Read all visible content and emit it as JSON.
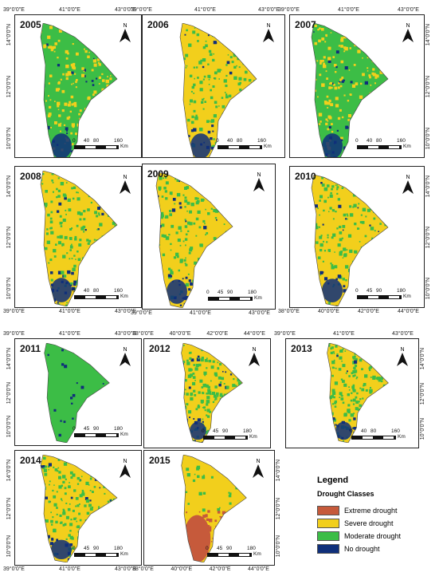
{
  "colors": {
    "extreme": "#c65a3b",
    "severe": "#f2cf1c",
    "moderate": "#3cbd46",
    "none": "#0f2f7a"
  },
  "panels": [
    {
      "year": "2005",
      "scale": [
        "0",
        "40",
        "80",
        "160"
      ],
      "unit": "Km",
      "lon": [
        "39°0'0\"E",
        "41°0'0\"E",
        "43°0'0\"E"
      ],
      "lat": [
        "14°0'0\"N",
        "12°0'0\"N",
        "10°0'0\"N"
      ],
      "dominant": "moderate"
    },
    {
      "year": "2006",
      "scale": [
        "0",
        "40",
        "80",
        "160"
      ],
      "unit": "Km",
      "lon": [
        "39°0'0\"E",
        "41°0'0\"E",
        "43°0'0\"E"
      ],
      "lat": [],
      "dominant": "severe"
    },
    {
      "year": "2007",
      "scale": [
        "0",
        "40",
        "80",
        "160"
      ],
      "unit": "Km",
      "lon": [
        "39°0'0\"E",
        "41°0'0\"E",
        "43°0'0\"E"
      ],
      "lat": [
        "14°0'0\"N",
        "12°0'0\"N",
        "10°0'0\"N"
      ],
      "dominant": "moderate"
    },
    {
      "year": "2008",
      "scale": [
        "0",
        "40",
        "80",
        "160"
      ],
      "unit": "Km",
      "lon": [
        "39°0'0\"E",
        "41°0'0\"E",
        "43°0'0\"E"
      ],
      "lat": [
        "14°0'0\"N",
        "12°0'0\"N",
        "10°0'0\"N"
      ],
      "dominant": "severe"
    },
    {
      "year": "2009",
      "scale": [
        "0",
        "45",
        "90",
        "180"
      ],
      "unit": "Km",
      "lon": [
        "39°0'0\"E",
        "41°0'0\"E",
        "43°0'0\"E"
      ],
      "lat": [],
      "dominant": "severe"
    },
    {
      "year": "2010",
      "scale": [
        "0",
        "45",
        "90",
        "180"
      ],
      "unit": "Km",
      "lon": [
        "38°0'0\"E",
        "40°0'0\"E",
        "42°0'0\"E",
        "44°0'0\"E"
      ],
      "lat": [
        "14°0'0\"N",
        "12°0'0\"N",
        "10°0'0\"N"
      ],
      "dominant": "severe"
    },
    {
      "year": "2011",
      "scale": [
        "0",
        "45",
        "90",
        "180"
      ],
      "unit": "Km",
      "lon": [
        "39°0'0\"E",
        "41°0'0\"E",
        "43°0'0\"E"
      ],
      "lat": [
        "14°0'0\"N",
        "12°0'0\"N",
        "10°0'0\"N"
      ],
      "dominant": "moderate"
    },
    {
      "year": "2012",
      "scale": [
        "0",
        "45",
        "90",
        "180"
      ],
      "unit": "Km",
      "lon": [
        "38°0'0\"E",
        "40°0'0\"E",
        "42°0'0\"E",
        "44°0'0\"E"
      ],
      "lat": [],
      "dominant": "severe"
    },
    {
      "year": "2013",
      "scale": [
        "0",
        "40",
        "80",
        "160"
      ],
      "unit": "Km",
      "lon": [
        "39°0'0\"E",
        "41°0'0\"E",
        "43°0'0\"E"
      ],
      "lat": [
        "14°0'0\"N",
        "12°0'0\"N",
        "10°0'0\"N"
      ],
      "dominant": "severe"
    },
    {
      "year": "2014",
      "scale": [
        "0",
        "45",
        "90",
        "180"
      ],
      "unit": "Km",
      "lon": [
        "39°0'0\"E",
        "41°0'0\"E",
        "43°0'0\"E"
      ],
      "lat": [
        "14°0'0\"N",
        "12°0'0\"N",
        "10°0'0\"N"
      ],
      "dominant": "severe"
    },
    {
      "year": "2015",
      "scale": [
        "0",
        "45",
        "90",
        "180"
      ],
      "unit": "Km",
      "lon": [
        "38°0'0\"E",
        "40°0'0\"E",
        "42°0'0\"E",
        "44°0'0\"E"
      ],
      "lat": [
        "14°0'0\"N",
        "12°0'0\"N",
        "10°0'0\"N"
      ],
      "dominant": "severe"
    }
  ],
  "legend": {
    "title": "Legend",
    "subtitle": "Drought Classes",
    "items": [
      {
        "label": "Extreme drought",
        "key": "extreme"
      },
      {
        "label": "Severe drought",
        "key": "severe"
      },
      {
        "label": "Moderate drought",
        "key": "moderate"
      },
      {
        "label": "No drought",
        "key": "none"
      }
    ]
  },
  "north_label": "N"
}
